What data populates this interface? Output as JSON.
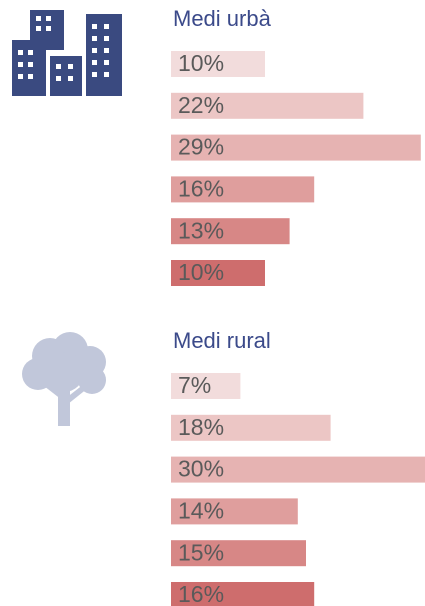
{
  "chart_data": [
    {
      "type": "bar",
      "title": "Medi urbà",
      "values": [
        10,
        22,
        29,
        16,
        13,
        10
      ],
      "value_labels": [
        "10%",
        "22%",
        "29%",
        "16%",
        "13%",
        "10%"
      ],
      "colors": [
        "#f2dcdc",
        "#ecc6c5",
        "#e6b3b2",
        "#df9e9d",
        "#d78786",
        "#ce6d6d"
      ]
    },
    {
      "type": "bar",
      "title": "Medi rural",
      "values": [
        7,
        18,
        30,
        14,
        15,
        16
      ],
      "value_labels": [
        "7%",
        "18%",
        "30%",
        "14%",
        "15%",
        "16%"
      ],
      "colors": [
        "#f2dcdc",
        "#ecc6c5",
        "#e6b3b2",
        "#df9e9d",
        "#d78786",
        "#ce6d6d"
      ]
    }
  ]
}
